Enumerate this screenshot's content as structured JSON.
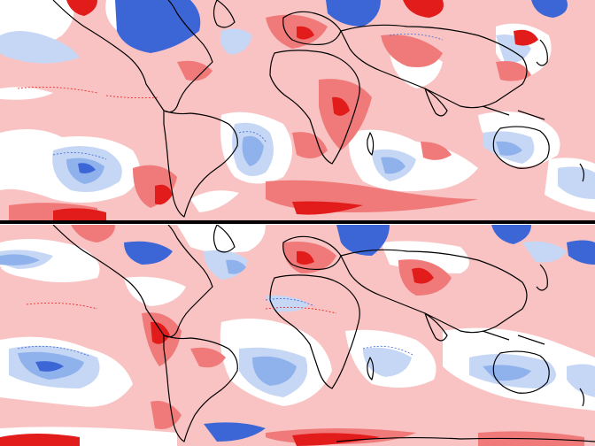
{
  "figure": {
    "panels": [
      {
        "id": "top",
        "projection": "equirectangular",
        "center_longitude": "-60",
        "coverage": "global"
      },
      {
        "id": "bottom",
        "projection": "equirectangular",
        "center_longitude": "-60",
        "coverage": "global"
      }
    ],
    "colors": {
      "warm_light": "#f9c3c3",
      "warm_mid": "#f07a7a",
      "warm_strong": "#e21b1b",
      "neutral": "#ffffff",
      "cool_light": "#c6d7f5",
      "cool_mid": "#8fb2ec",
      "cool_strong": "#3c66d6",
      "coastline": "#000000"
    },
    "shading_classes": [
      "cool_strong",
      "cool_mid",
      "cool_light",
      "neutral",
      "warm_light",
      "warm_mid",
      "warm_strong"
    ]
  }
}
